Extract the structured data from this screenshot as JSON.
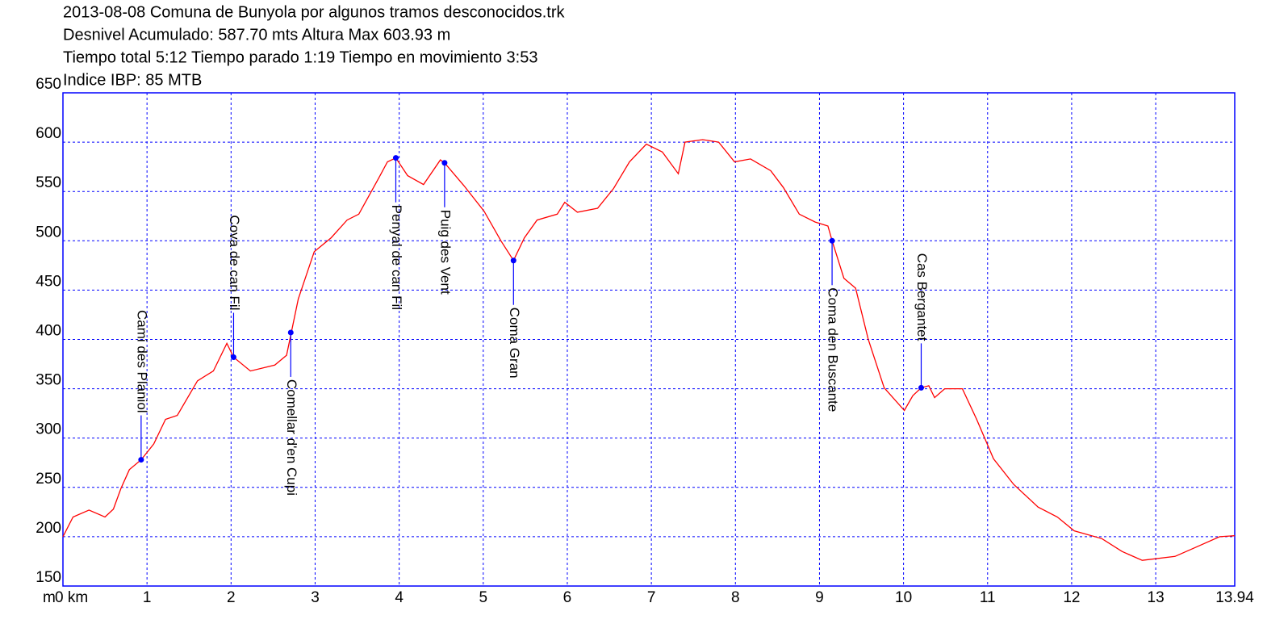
{
  "chart_data": {
    "type": "line",
    "title": "2013-08-08 Comuna de Bunyola por algunos tramos desconocidos.trk",
    "subtitles": [
      "Desnivel Acumulado: 587.70 mts  Altura Max 603.93 m",
      "Tiempo total 5:12 Tiempo parado 1:19 Tiempo en movimiento 3:53",
      "Indice IBP: 85 MTB"
    ],
    "y_unit": "m",
    "color": "#ff0000",
    "grid": true,
    "x": [
      0,
      0.12,
      0.31,
      0.5,
      0.6,
      0.69,
      0.79,
      0.93,
      1.08,
      1.22,
      1.36,
      1.6,
      1.79,
      1.95,
      2.03,
      2.23,
      2.52,
      2.66,
      2.8,
      2.99,
      3.19,
      3.38,
      3.52,
      3.76,
      3.86,
      3.96,
      4.1,
      4.29,
      4.49,
      4.54,
      4.77,
      5.01,
      5.21,
      5.36,
      5.49,
      5.64,
      5.88,
      5.97,
      6.12,
      6.36,
      6.55,
      6.74,
      6.94,
      7.13,
      7.32,
      7.4,
      7.61,
      7.8,
      7.99,
      8.18,
      8.42,
      8.57,
      8.76,
      8.95,
      9.1,
      9.15,
      9.29,
      9.43,
      9.58,
      9.77,
      10.01,
      10.11,
      10.21,
      10.3,
      10.37,
      10.49,
      10.7,
      10.87,
      11.07,
      11.31,
      11.6,
      11.83,
      12.03,
      12.36,
      12.6,
      12.84,
      13.23,
      13.47,
      13.76,
      13.94
    ],
    "values": [
      200,
      220,
      227,
      220,
      228,
      249,
      268,
      278,
      294,
      319,
      323,
      358,
      368,
      396,
      382,
      368,
      374,
      384,
      441,
      489,
      503,
      521,
      527,
      564,
      580,
      584,
      566,
      557,
      582,
      579,
      556,
      530,
      500,
      480,
      503,
      521,
      527,
      539,
      529,
      533,
      553,
      580,
      598,
      590,
      568,
      600,
      602.5,
      600,
      580,
      583,
      571,
      554,
      527,
      519,
      515,
      500,
      462,
      452,
      400,
      351,
      328,
      343,
      351,
      353,
      341,
      350,
      350,
      319,
      279,
      253,
      230,
      220,
      206,
      198,
      185,
      176,
      180,
      189,
      200,
      201
    ],
    "xlim": [
      0,
      13.94
    ],
    "xticks": [
      {
        "value": 0,
        "label": "0 km"
      },
      1,
      2,
      3,
      4,
      5,
      6,
      7,
      8,
      9,
      10,
      11,
      12,
      13,
      13.94
    ],
    "ylim": [
      150,
      650
    ],
    "yticks": [
      150,
      200,
      250,
      300,
      350,
      400,
      450,
      500,
      550,
      600,
      650
    ],
    "waypoint_color": "#0000ff",
    "annotations": [
      {
        "label": "Cami des Planiol",
        "x": 0.93,
        "y": 278,
        "side": "above"
      },
      {
        "label": "Cova de can Fil",
        "x": 2.03,
        "y": 382,
        "side": "above"
      },
      {
        "label": "Comellar d'en Cupi",
        "x": 2.71,
        "y": 407,
        "side": "below"
      },
      {
        "label": "Penyal de can Fil",
        "x": 3.96,
        "y": 584,
        "side": "below"
      },
      {
        "label": "Puig des Vent",
        "x": 4.54,
        "y": 579,
        "side": "below"
      },
      {
        "label": "Coma Gran",
        "x": 5.36,
        "y": 480,
        "side": "below"
      },
      {
        "label": "Coma den Buscante",
        "x": 9.15,
        "y": 500,
        "side": "below"
      },
      {
        "label": "Cas Bergantet",
        "x": 10.21,
        "y": 351,
        "side": "above"
      }
    ]
  }
}
